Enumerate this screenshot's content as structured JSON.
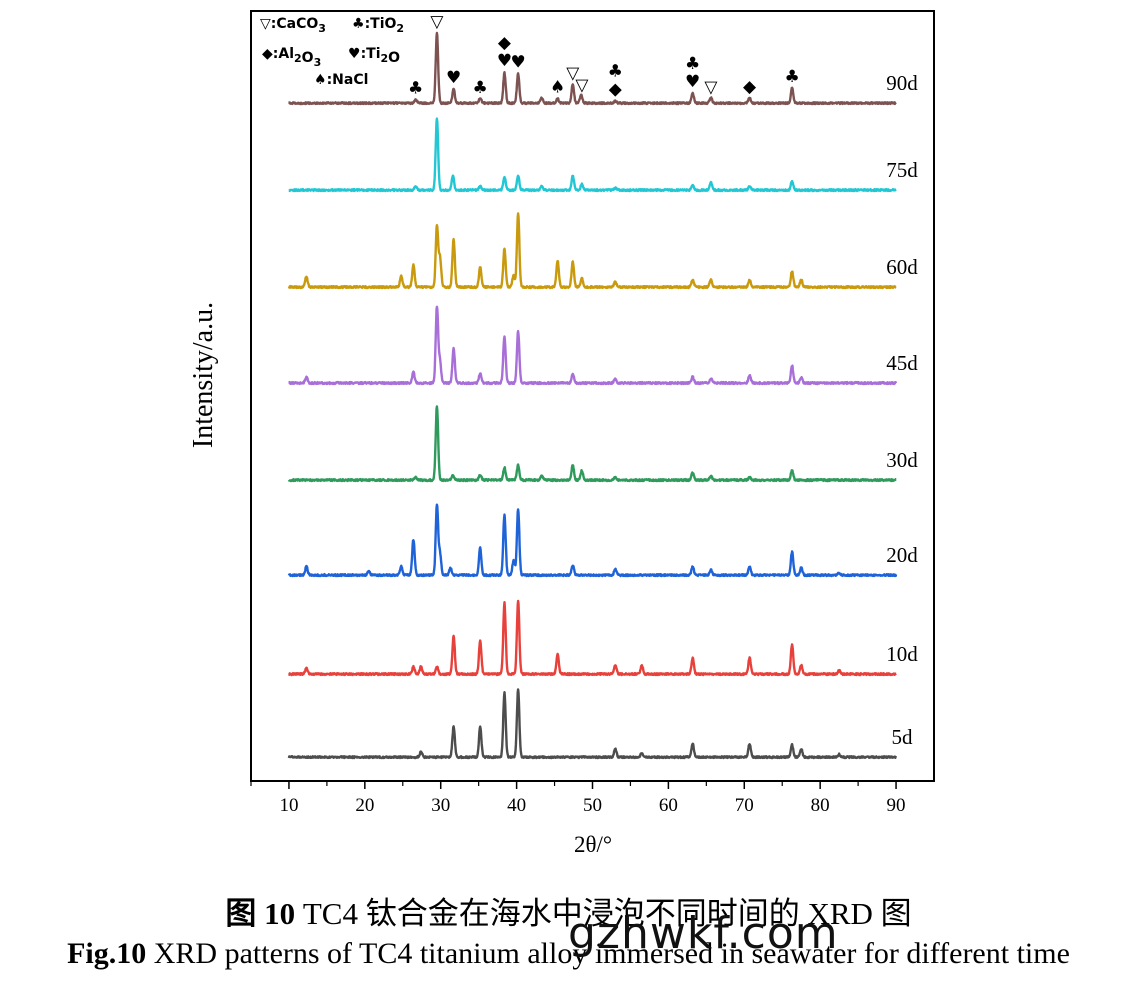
{
  "chart_data": {
    "type": "line",
    "xlabel": "2θ/°",
    "ylabel": "Intensity/a.u.",
    "xlim": [
      5,
      95
    ],
    "xticks": [
      10,
      20,
      30,
      40,
      50,
      60,
      70,
      80,
      90
    ],
    "grid": false,
    "legend": "top-left",
    "series": [
      {
        "name": "5d",
        "color": "#4d4d4d",
        "peaks": [
          [
            27.4,
            0.08
          ],
          [
            31.7,
            0.45
          ],
          [
            35.2,
            0.45
          ],
          [
            38.4,
            0.95
          ],
          [
            40.2,
            1.0
          ],
          [
            53.0,
            0.12
          ],
          [
            56.5,
            0.06
          ],
          [
            63.2,
            0.2
          ],
          [
            70.7,
            0.2
          ],
          [
            76.3,
            0.18
          ],
          [
            77.5,
            0.12
          ],
          [
            82.5,
            0.04
          ]
        ]
      },
      {
        "name": "10d",
        "color": "#e8413b",
        "peaks": [
          [
            12.3,
            0.08
          ],
          [
            26.4,
            0.1
          ],
          [
            27.4,
            0.1
          ],
          [
            29.5,
            0.1
          ],
          [
            31.7,
            0.52
          ],
          [
            35.2,
            0.45
          ],
          [
            38.4,
            0.98
          ],
          [
            40.2,
            1.0
          ],
          [
            45.4,
            0.28
          ],
          [
            53.0,
            0.12
          ],
          [
            56.5,
            0.12
          ],
          [
            63.2,
            0.22
          ],
          [
            70.7,
            0.22
          ],
          [
            76.3,
            0.4
          ],
          [
            77.5,
            0.12
          ],
          [
            82.5,
            0.05
          ]
        ]
      },
      {
        "name": "20d",
        "color": "#1f63d9",
        "peaks": [
          [
            12.3,
            0.12
          ],
          [
            20.5,
            0.05
          ],
          [
            24.8,
            0.12
          ],
          [
            26.4,
            0.5
          ],
          [
            29.5,
            0.98
          ],
          [
            29.9,
            0.3
          ],
          [
            31.3,
            0.1
          ],
          [
            35.2,
            0.38
          ],
          [
            38.4,
            0.85
          ],
          [
            39.6,
            0.2
          ],
          [
            40.2,
            0.93
          ],
          [
            47.4,
            0.14
          ],
          [
            53.0,
            0.08
          ],
          [
            63.2,
            0.12
          ],
          [
            65.6,
            0.08
          ],
          [
            70.7,
            0.12
          ],
          [
            76.3,
            0.33
          ],
          [
            77.5,
            0.1
          ],
          [
            82.5,
            0.03
          ]
        ]
      },
      {
        "name": "30d",
        "color": "#2e9a5c",
        "peaks": [
          [
            26.7,
            0.04
          ],
          [
            29.5,
            1.0
          ],
          [
            31.6,
            0.06
          ],
          [
            35.2,
            0.07
          ],
          [
            38.4,
            0.17
          ],
          [
            40.2,
            0.2
          ],
          [
            43.3,
            0.06
          ],
          [
            47.4,
            0.2
          ],
          [
            48.6,
            0.13
          ],
          [
            53.0,
            0.04
          ],
          [
            63.2,
            0.1
          ],
          [
            65.6,
            0.06
          ],
          [
            70.7,
            0.04
          ],
          [
            76.3,
            0.13
          ]
        ]
      },
      {
        "name": "45d",
        "color": "#a86fd9",
        "peaks": [
          [
            12.3,
            0.08
          ],
          [
            26.4,
            0.14
          ],
          [
            29.5,
            1.0
          ],
          [
            29.9,
            0.28
          ],
          [
            31.7,
            0.45
          ],
          [
            35.2,
            0.13
          ],
          [
            38.4,
            0.62
          ],
          [
            40.2,
            0.68
          ],
          [
            47.4,
            0.12
          ],
          [
            53.0,
            0.06
          ],
          [
            63.2,
            0.08
          ],
          [
            65.6,
            0.06
          ],
          [
            70.7,
            0.1
          ],
          [
            76.3,
            0.23
          ],
          [
            77.5,
            0.08
          ]
        ]
      },
      {
        "name": "60d",
        "color": "#c99a0d",
        "peaks": [
          [
            12.3,
            0.14
          ],
          [
            24.8,
            0.15
          ],
          [
            26.4,
            0.3
          ],
          [
            29.5,
            0.82
          ],
          [
            29.9,
            0.4
          ],
          [
            31.7,
            0.64
          ],
          [
            35.2,
            0.27
          ],
          [
            38.4,
            0.52
          ],
          [
            39.6,
            0.15
          ],
          [
            40.2,
            1.0
          ],
          [
            45.4,
            0.36
          ],
          [
            47.4,
            0.34
          ],
          [
            48.6,
            0.12
          ],
          [
            53.0,
            0.07
          ],
          [
            63.2,
            0.1
          ],
          [
            65.6,
            0.1
          ],
          [
            70.7,
            0.1
          ],
          [
            76.3,
            0.22
          ],
          [
            77.5,
            0.1
          ]
        ]
      },
      {
        "name": "75d",
        "color": "#22c7d4",
        "peaks": [
          [
            26.7,
            0.05
          ],
          [
            29.5,
            1.0
          ],
          [
            31.6,
            0.2
          ],
          [
            35.2,
            0.05
          ],
          [
            38.4,
            0.18
          ],
          [
            40.2,
            0.2
          ],
          [
            43.3,
            0.05
          ],
          [
            47.4,
            0.2
          ],
          [
            48.6,
            0.08
          ],
          [
            53.0,
            0.03
          ],
          [
            63.2,
            0.06
          ],
          [
            65.6,
            0.1
          ],
          [
            70.7,
            0.05
          ],
          [
            76.3,
            0.12
          ]
        ]
      },
      {
        "name": "90d",
        "color": "#7d5352",
        "peaks": [
          [
            26.7,
            0.05
          ],
          [
            29.5,
            1.0
          ],
          [
            31.7,
            0.2
          ],
          [
            35.2,
            0.07
          ],
          [
            38.4,
            0.43
          ],
          [
            40.2,
            0.42
          ],
          [
            43.3,
            0.07
          ],
          [
            45.4,
            0.06
          ],
          [
            47.4,
            0.27
          ],
          [
            48.5,
            0.12
          ],
          [
            53.0,
            0.03
          ],
          [
            63.2,
            0.14
          ],
          [
            65.6,
            0.08
          ],
          [
            70.7,
            0.08
          ],
          [
            76.3,
            0.22
          ]
        ]
      }
    ],
    "legend_entries": [
      {
        "symbol": "▽",
        "label": ":CaCO",
        "sub": "3"
      },
      {
        "symbol": "♣",
        "label": ":TiO",
        "sub": "2"
      },
      {
        "symbol": "◆",
        "label": ":Al",
        "sub": "2",
        "label2": "O",
        "sub2": "3"
      },
      {
        "symbol": "♥",
        "label": ":Ti",
        "sub": "2",
        "label2": "O",
        "sub2": ""
      },
      {
        "symbol": "♠",
        "label": ":NaCl",
        "sub": ""
      }
    ],
    "phase_markers_90d": [
      {
        "x": 26.7,
        "symbols": "♣"
      },
      {
        "x": 29.5,
        "symbols": "▽"
      },
      {
        "x": 31.7,
        "symbols": "♥"
      },
      {
        "x": 35.2,
        "symbols": "♣"
      },
      {
        "x": 38.4,
        "symbols": "◆♥"
      },
      {
        "x": 40.2,
        "symbols": "♥"
      },
      {
        "x": 45.4,
        "symbols": "♠"
      },
      {
        "x": 47.4,
        "symbols": "▽"
      },
      {
        "x": 48.6,
        "symbols": "▽"
      },
      {
        "x": 53.0,
        "symbols": "♣◆"
      },
      {
        "x": 63.2,
        "symbols": "♣♥"
      },
      {
        "x": 65.6,
        "symbols": "▽"
      },
      {
        "x": 70.7,
        "symbols": "◆"
      },
      {
        "x": 76.3,
        "symbols": "♣"
      }
    ]
  },
  "caption": {
    "cn_prefix": "图 10",
    "cn_text": " TC4 钛合金在海水中浸泡不同时间的 XRD 图",
    "en_prefix": "Fig.10",
    "en_text": " XRD patterns of TC4 titanium alloy immersed in seawater for different time"
  },
  "watermark": "gzhwkf.com"
}
